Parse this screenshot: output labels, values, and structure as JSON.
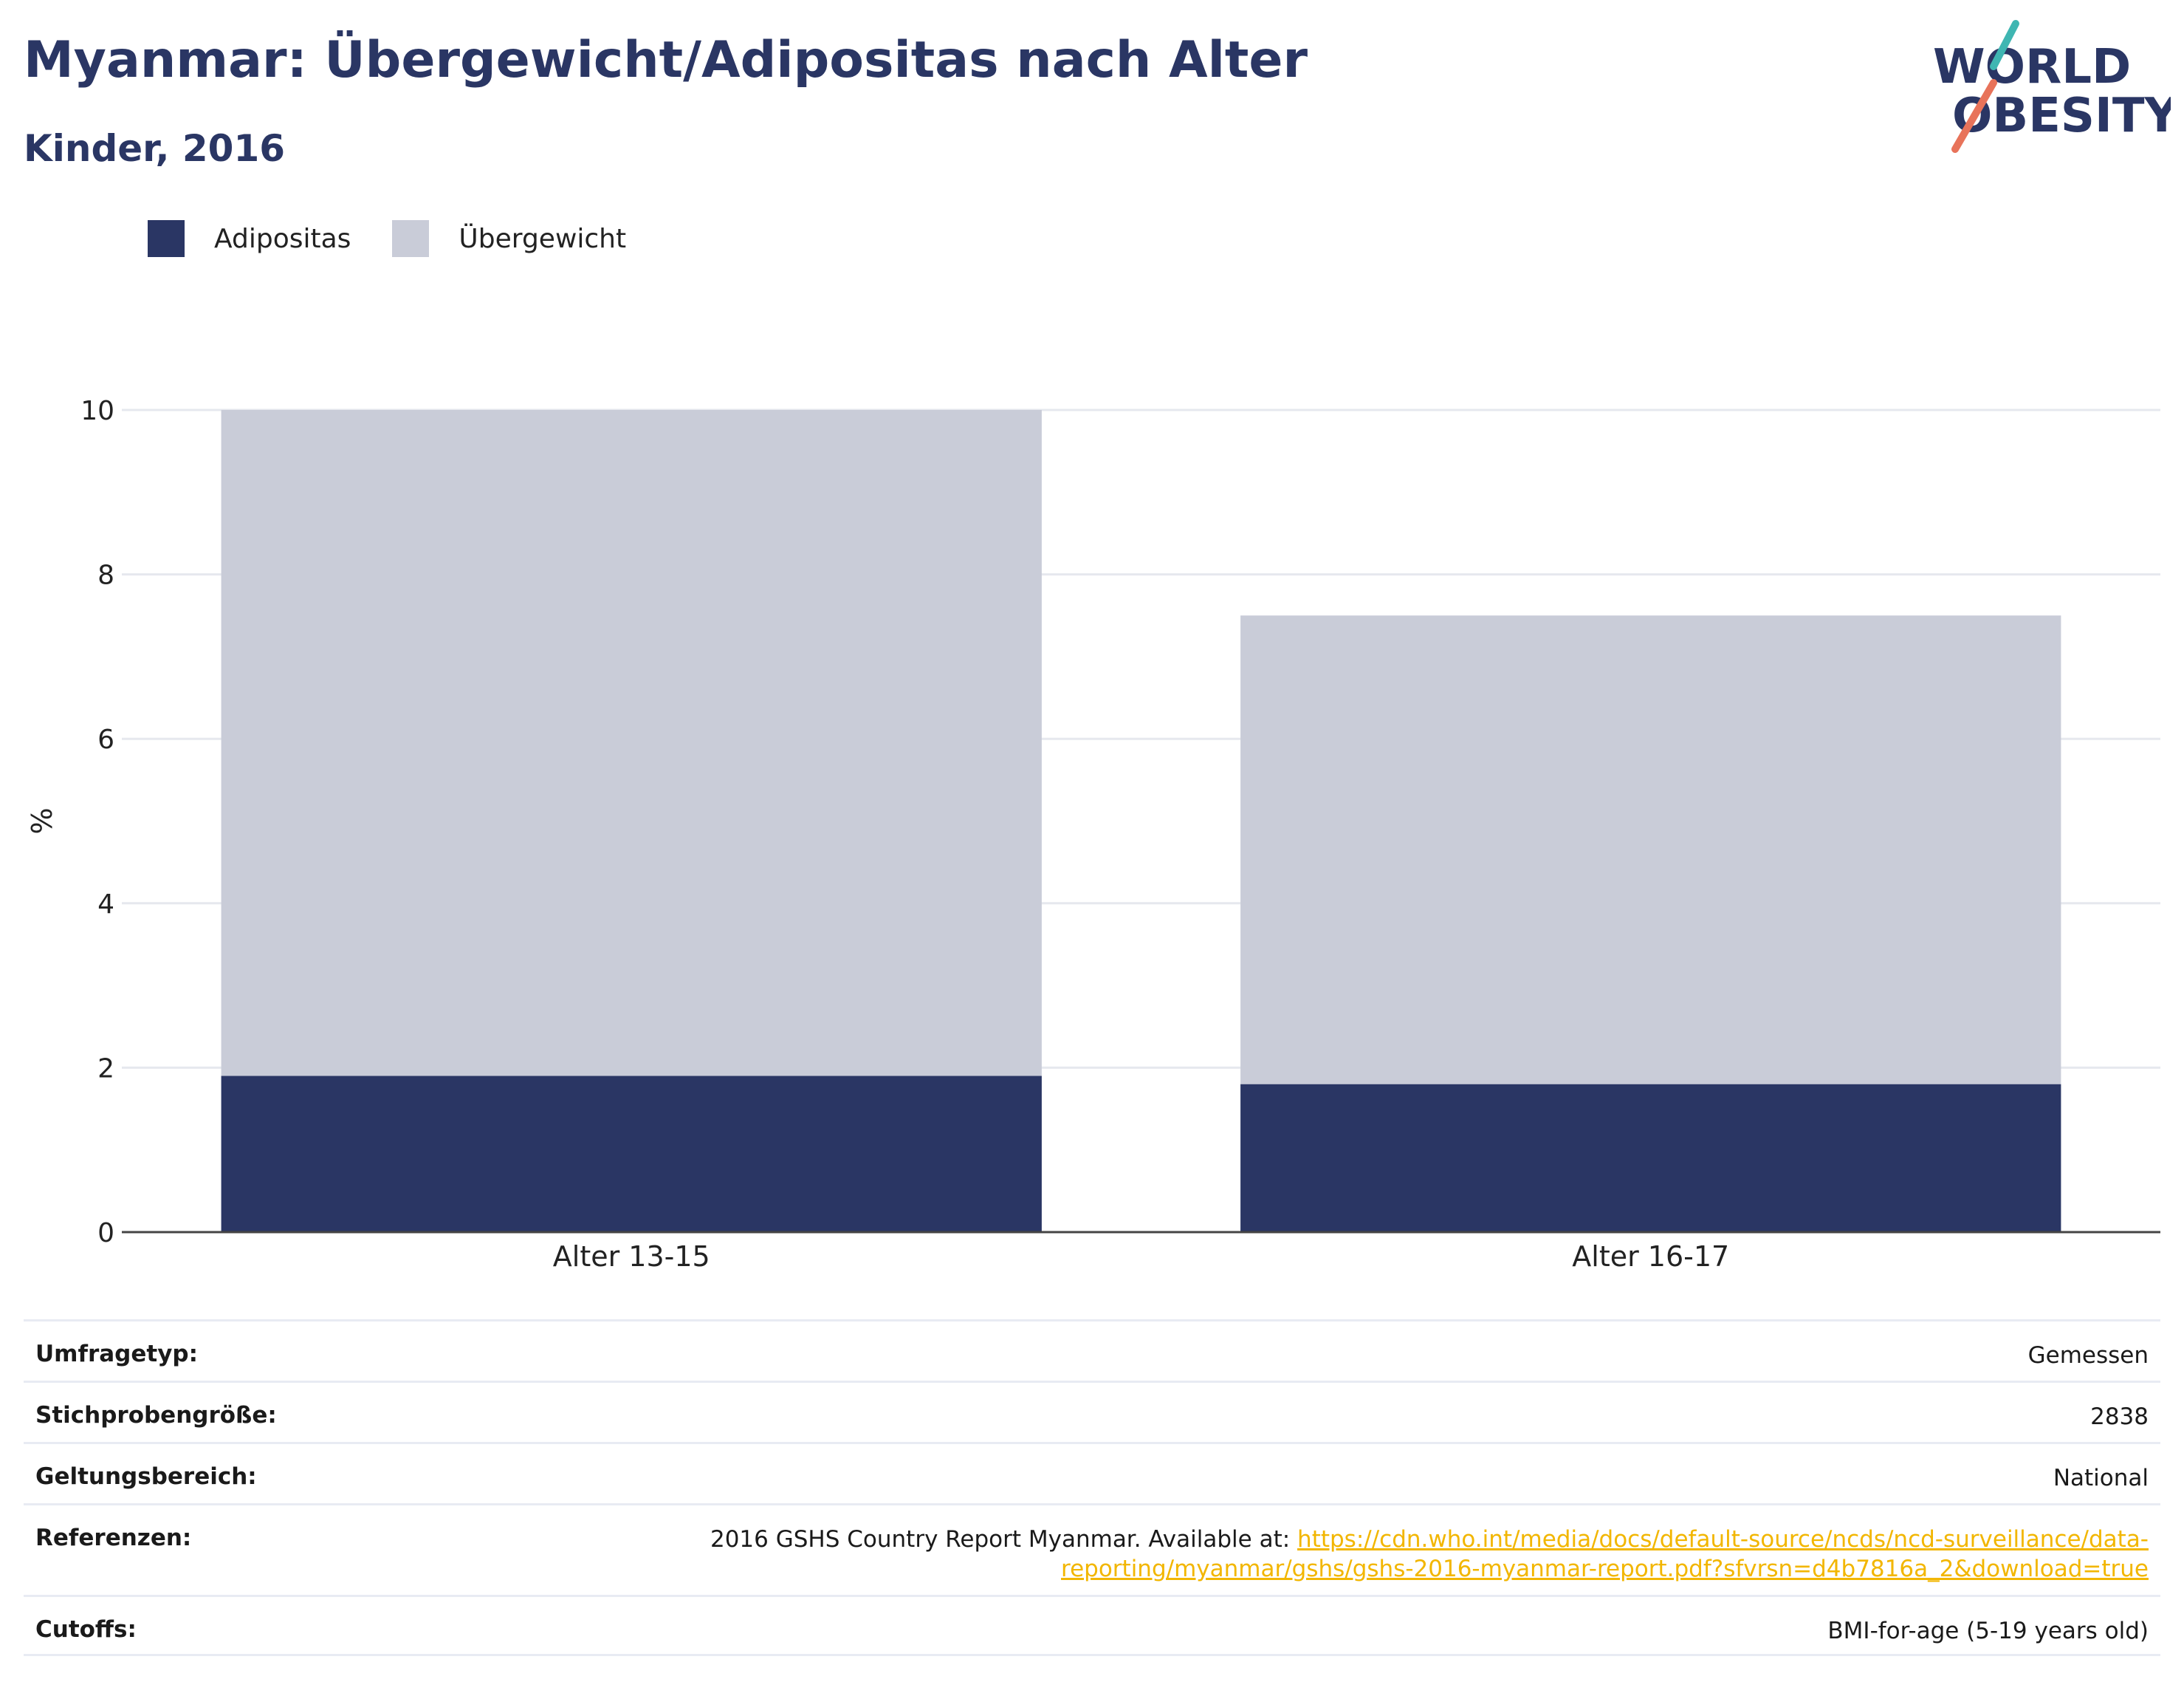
{
  "header": {
    "title": "Myanmar: Übergewicht/Adipositas nach Alter",
    "subtitle": "Kinder, 2016"
  },
  "logo": {
    "line1": "WORLD",
    "line2": "OBESITY",
    "colors": {
      "text": "#2a3664",
      "slash_top": "#3fb6b2",
      "slash_bottom": "#e8735a"
    }
  },
  "legend": [
    {
      "label": "Adipositas",
      "color": "#2a3664"
    },
    {
      "label": "Übergewicht",
      "color": "#c9ccd8"
    }
  ],
  "chart_data": {
    "type": "bar",
    "stacked": true,
    "categories": [
      "Alter 13-15",
      "Alter 16-17"
    ],
    "series": [
      {
        "name": "Adipositas",
        "color": "#2a3664",
        "values": [
          1.9,
          1.8
        ]
      },
      {
        "name": "Übergewicht",
        "color": "#c9ccd8",
        "values": [
          8.1,
          5.7
        ]
      }
    ],
    "ylabel": "%",
    "ylim": [
      0,
      10
    ],
    "yticks": [
      0,
      2,
      4,
      6,
      8,
      10
    ],
    "grid": true,
    "legend_position": "top-left"
  },
  "meta": {
    "survey_type": {
      "label": "Umfragetyp:",
      "value": "Gemessen"
    },
    "sample_size": {
      "label": "Stichprobengröße:",
      "value": "2838"
    },
    "coverage": {
      "label": "Geltungsbereich:",
      "value": "National"
    },
    "references": {
      "label": "Referenzen:",
      "text": "2016 GSHS Country Report Myanmar. Available at: ",
      "link_line1": "https://cdn.who.int/media/docs/default-source/ncds/ncd-surveillance/data-",
      "link_line2": "reporting/myanmar/gshs/gshs-2016-myanmar-report.pdf?sfvrsn=d4b7816a_2&download=true"
    },
    "cutoffs": {
      "label": "Cutoffs:",
      "value": "BMI-for-age (5-19 years old)"
    }
  }
}
